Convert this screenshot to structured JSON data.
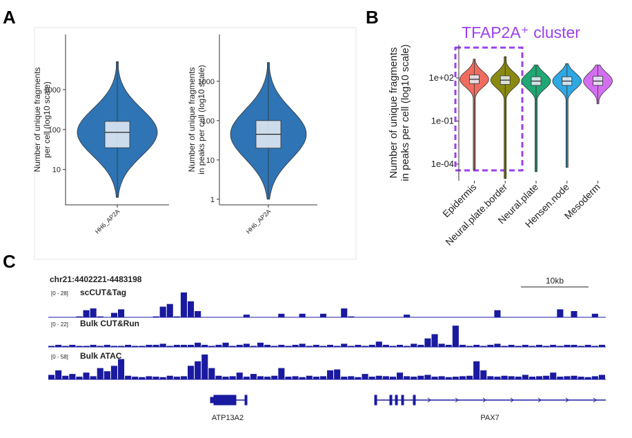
{
  "chart_data": [
    {
      "type": "violin",
      "panel": "A",
      "ylabel": [
        "Number of unique fragments",
        "per cell (log10 scale)"
      ],
      "categories": [
        "HH6_AP2A"
      ],
      "color": "#2f74b5",
      "log_scale": true,
      "ylim": [
        1.3,
        24000
      ],
      "yticks": [
        10,
        100,
        1000
      ],
      "boxes": [
        {
          "min": 2,
          "q1": 35,
          "median": 85,
          "q3": 160,
          "max": 5000
        }
      ]
    },
    {
      "type": "violin",
      "ylabel": [
        "Number of unique fragments",
        "in peaks per cell (log10 scale)"
      ],
      "categories": [
        "HH6_AP2A"
      ],
      "color": "#2f74b5",
      "log_scale": true,
      "ylim": [
        0.72,
        15500
      ],
      "yticks": [
        1,
        10,
        100,
        1000
      ],
      "boxes": [
        {
          "min": 1,
          "q1": 20,
          "median": 45,
          "q3": 100,
          "max": 3000
        }
      ]
    },
    {
      "type": "violin",
      "panel": "B",
      "title": "TFAP2A⁺ cluster",
      "ylabel": [
        "Number of unique fragments",
        "in peaks per cell (log10 scale)"
      ],
      "categories": [
        "Epidermis",
        "Neural.plate.border",
        "Neural.plate",
        "Hensen.node",
        "Mesoderm"
      ],
      "colors": [
        "#f26b5f",
        "#8a8a12",
        "#1fa874",
        "#2ea8e2",
        "#d46ef0"
      ],
      "log_scale": true,
      "ylim": [
        7e-06,
        20000
      ],
      "yticks": [
        {
          "value": 0.0001,
          "label": "1e-04"
        },
        {
          "value": 0.1,
          "label": "1e-01"
        },
        {
          "value": 100,
          "label": "1e+02"
        }
      ],
      "boxes": [
        {
          "min": 4e-05,
          "q1": 40,
          "median": 80,
          "q3": 160,
          "max": 2000
        },
        {
          "min": 1e-05,
          "q1": 35,
          "median": 70,
          "q3": 140,
          "max": 3000
        },
        {
          "min": 3e-05,
          "q1": 30,
          "median": 60,
          "q3": 120,
          "max": 800
        },
        {
          "min": 6e-05,
          "q1": 30,
          "median": 60,
          "q3": 120,
          "max": 1000
        },
        {
          "min": 1.6,
          "q1": 30,
          "median": 60,
          "q3": 130,
          "max": 800
        }
      ]
    },
    {
      "type": "tracks",
      "panel": "C",
      "locus": "chr21:4402221-4483198",
      "scale_bar": "10kb",
      "color": "#1a1aa0",
      "tracks": [
        {
          "name": "scCUT&Tag",
          "range": "[0 - 28]",
          "ylim": [
            0,
            28
          ],
          "values": [
            0,
            0,
            0,
            0,
            1,
            8,
            10,
            1,
            0,
            5,
            9,
            0,
            0,
            0,
            0,
            1,
            12,
            15,
            1,
            28,
            18,
            7,
            0,
            0,
            0,
            0,
            0,
            0,
            3,
            0,
            0,
            0,
            0,
            4,
            0,
            0,
            4,
            0,
            0,
            4,
            0,
            0,
            10,
            1,
            0,
            0,
            0,
            0,
            0,
            0,
            0,
            3,
            0,
            0,
            0,
            0,
            0,
            0,
            0,
            0,
            0,
            0,
            0,
            0,
            8,
            0,
            0,
            0,
            0,
            0,
            0,
            0,
            0,
            9,
            0,
            7,
            0,
            0,
            4,
            0
          ]
        },
        {
          "name": "Bulk CUT&Run",
          "range": "[0 - 22]",
          "ylim": [
            0,
            22
          ],
          "values": [
            1,
            2,
            1,
            2,
            1,
            1,
            2,
            1,
            2,
            1,
            1,
            2,
            1,
            1,
            2,
            2,
            3,
            1,
            2,
            2,
            2,
            4,
            2,
            1,
            2,
            4,
            1,
            2,
            3,
            1,
            4,
            2,
            1,
            2,
            1,
            2,
            3,
            1,
            2,
            1,
            2,
            1,
            3,
            1,
            2,
            1,
            2,
            5,
            2,
            1,
            2,
            1,
            3,
            2,
            8,
            12,
            3,
            2,
            20,
            2,
            1,
            2,
            1,
            2,
            3,
            1,
            2,
            1,
            2,
            1,
            2,
            1,
            2,
            1,
            2,
            2,
            1,
            2,
            1,
            2
          ]
        },
        {
          "name": "Bulk ATAC",
          "range": "[0 - 58]",
          "ylim": [
            0,
            58
          ],
          "values": [
            10,
            20,
            8,
            12,
            6,
            15,
            7,
            25,
            18,
            30,
            45,
            8,
            6,
            5,
            7,
            6,
            5,
            8,
            6,
            7,
            30,
            40,
            55,
            25,
            8,
            6,
            7,
            15,
            6,
            12,
            7,
            6,
            8,
            25,
            6,
            7,
            5,
            8,
            6,
            7,
            20,
            22,
            6,
            7,
            5,
            12,
            6,
            8,
            7,
            6,
            15,
            7,
            6,
            8,
            10,
            6,
            7,
            5,
            6,
            7,
            8,
            40,
            20,
            7,
            6,
            8,
            7,
            6,
            10,
            6,
            7,
            8,
            15,
            6,
            7,
            8,
            6,
            5,
            7,
            10
          ]
        }
      ],
      "genes": [
        "ATP13A2",
        "PAX7"
      ]
    }
  ]
}
